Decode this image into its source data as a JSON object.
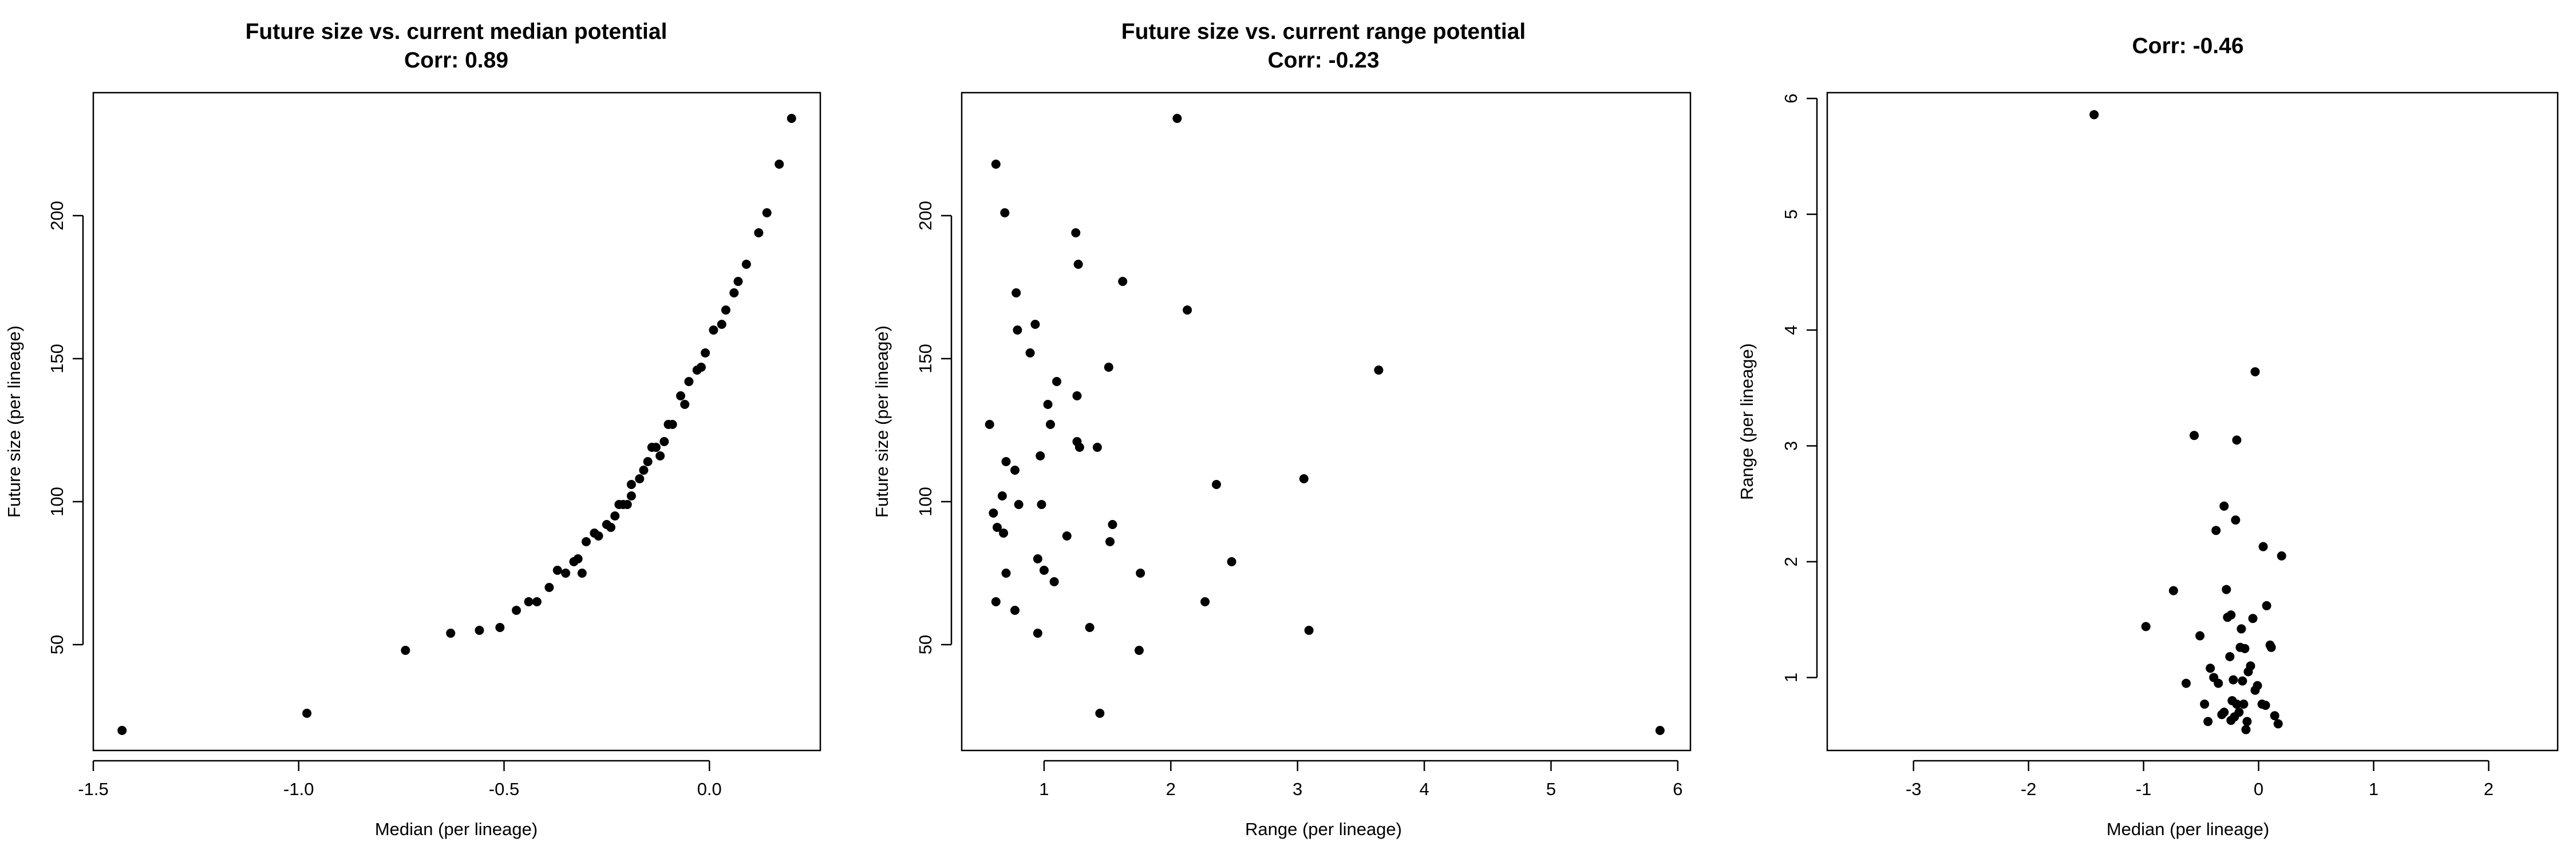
{
  "chart_data": [
    {
      "type": "scatter",
      "title": "Future size vs. current median potential",
      "subtitle": "Corr: 0.89",
      "xlabel": "Median (per lineage)",
      "ylabel": "Future size (per lineage)",
      "xlim": [
        -1.5,
        0.27
      ],
      "ylim": [
        13,
        243
      ],
      "xticks": [
        -1.5,
        -1.0,
        -0.5,
        0.0
      ],
      "xtick_labels": [
        "-1.5",
        "-1.0",
        "-0.5",
        "0.0"
      ],
      "yticks": [
        50,
        100,
        150,
        200
      ],
      "ytick_labels": [
        "50",
        "100",
        "150",
        "200"
      ],
      "point_color": "#000000",
      "points": [
        {
          "x": -1.43,
          "y": 20
        },
        {
          "x": -0.98,
          "y": 26
        },
        {
          "x": -0.74,
          "y": 48
        },
        {
          "x": -0.63,
          "y": 54
        },
        {
          "x": -0.56,
          "y": 55
        },
        {
          "x": -0.51,
          "y": 56
        },
        {
          "x": -0.47,
          "y": 62
        },
        {
          "x": -0.44,
          "y": 65
        },
        {
          "x": -0.42,
          "y": 65
        },
        {
          "x": -0.39,
          "y": 70
        },
        {
          "x": -0.37,
          "y": 76
        },
        {
          "x": -0.35,
          "y": 75
        },
        {
          "x": -0.33,
          "y": 79
        },
        {
          "x": -0.32,
          "y": 80
        },
        {
          "x": -0.31,
          "y": 75
        },
        {
          "x": -0.3,
          "y": 86
        },
        {
          "x": -0.28,
          "y": 89
        },
        {
          "x": -0.27,
          "y": 88
        },
        {
          "x": -0.25,
          "y": 92
        },
        {
          "x": -0.24,
          "y": 91
        },
        {
          "x": -0.23,
          "y": 95
        },
        {
          "x": -0.22,
          "y": 99
        },
        {
          "x": -0.21,
          "y": 99
        },
        {
          "x": -0.2,
          "y": 99
        },
        {
          "x": -0.19,
          "y": 106
        },
        {
          "x": -0.19,
          "y": 102
        },
        {
          "x": -0.17,
          "y": 108
        },
        {
          "x": -0.16,
          "y": 111
        },
        {
          "x": -0.15,
          "y": 114
        },
        {
          "x": -0.14,
          "y": 119
        },
        {
          "x": -0.13,
          "y": 119
        },
        {
          "x": -0.12,
          "y": 116
        },
        {
          "x": -0.11,
          "y": 121
        },
        {
          "x": -0.1,
          "y": 127
        },
        {
          "x": -0.09,
          "y": 127
        },
        {
          "x": -0.07,
          "y": 137
        },
        {
          "x": -0.06,
          "y": 134
        },
        {
          "x": -0.05,
          "y": 142
        },
        {
          "x": -0.03,
          "y": 146
        },
        {
          "x": -0.02,
          "y": 147
        },
        {
          "x": -0.01,
          "y": 152
        },
        {
          "x": 0.01,
          "y": 160
        },
        {
          "x": 0.03,
          "y": 162
        },
        {
          "x": 0.04,
          "y": 167
        },
        {
          "x": 0.06,
          "y": 173
        },
        {
          "x": 0.07,
          "y": 177
        },
        {
          "x": 0.09,
          "y": 183
        },
        {
          "x": 0.12,
          "y": 194
        },
        {
          "x": 0.14,
          "y": 201
        },
        {
          "x": 0.17,
          "y": 218
        },
        {
          "x": 0.2,
          "y": 234
        }
      ]
    },
    {
      "type": "scatter",
      "title": "Future size vs. current range potential",
      "subtitle": "Corr: -0.23",
      "xlabel": "Range (per lineage)",
      "ylabel": "Future size (per lineage)",
      "xlim": [
        0.35,
        6.1
      ],
      "ylim": [
        13,
        243
      ],
      "xticks": [
        1,
        2,
        3,
        4,
        5,
        6
      ],
      "xtick_labels": [
        "1",
        "2",
        "3",
        "4",
        "5",
        "6"
      ],
      "yticks": [
        50,
        100,
        150,
        200
      ],
      "ytick_labels": [
        "50",
        "100",
        "150",
        "200"
      ],
      "point_color": "#000000",
      "points": [
        {
          "x": 0.57,
          "y": 127
        },
        {
          "x": 0.62,
          "y": 218
        },
        {
          "x": 0.6,
          "y": 96
        },
        {
          "x": 0.62,
          "y": 65
        },
        {
          "x": 0.63,
          "y": 91
        },
        {
          "x": 0.67,
          "y": 102
        },
        {
          "x": 0.68,
          "y": 89
        },
        {
          "x": 0.69,
          "y": 201
        },
        {
          "x": 0.7,
          "y": 114
        },
        {
          "x": 0.7,
          "y": 75
        },
        {
          "x": 0.77,
          "y": 111
        },
        {
          "x": 0.78,
          "y": 173
        },
        {
          "x": 0.79,
          "y": 160
        },
        {
          "x": 0.77,
          "y": 62
        },
        {
          "x": 0.8,
          "y": 99
        },
        {
          "x": 0.89,
          "y": 152
        },
        {
          "x": 0.93,
          "y": 162
        },
        {
          "x": 0.95,
          "y": 80
        },
        {
          "x": 0.95,
          "y": 54
        },
        {
          "x": 0.97,
          "y": 116
        },
        {
          "x": 0.98,
          "y": 99
        },
        {
          "x": 1.0,
          "y": 76
        },
        {
          "x": 1.03,
          "y": 134
        },
        {
          "x": 1.05,
          "y": 127
        },
        {
          "x": 1.08,
          "y": 72
        },
        {
          "x": 1.1,
          "y": 142
        },
        {
          "x": 1.18,
          "y": 88
        },
        {
          "x": 1.25,
          "y": 194
        },
        {
          "x": 1.26,
          "y": 137
        },
        {
          "x": 1.27,
          "y": 183
        },
        {
          "x": 1.26,
          "y": 121
        },
        {
          "x": 1.28,
          "y": 119
        },
        {
          "x": 1.36,
          "y": 56
        },
        {
          "x": 1.42,
          "y": 119
        },
        {
          "x": 1.44,
          "y": 26
        },
        {
          "x": 1.51,
          "y": 147
        },
        {
          "x": 1.52,
          "y": 86
        },
        {
          "x": 1.54,
          "y": 92
        },
        {
          "x": 1.62,
          "y": 177
        },
        {
          "x": 1.75,
          "y": 48
        },
        {
          "x": 1.76,
          "y": 75
        },
        {
          "x": 2.05,
          "y": 234
        },
        {
          "x": 2.13,
          "y": 167
        },
        {
          "x": 2.27,
          "y": 65
        },
        {
          "x": 2.36,
          "y": 106
        },
        {
          "x": 2.48,
          "y": 79
        },
        {
          "x": 3.05,
          "y": 108
        },
        {
          "x": 3.09,
          "y": 55
        },
        {
          "x": 3.64,
          "y": 146
        },
        {
          "x": 5.86,
          "y": 20
        }
      ]
    },
    {
      "type": "scatter",
      "title": "",
      "subtitle": "Corr: -0.46",
      "xlabel": "Median (per lineage)",
      "ylabel": "Range (per lineage)",
      "xlim": [
        -3.75,
        2.6
      ],
      "ylim": [
        0.37,
        6.05
      ],
      "xticks": [
        -3,
        -2,
        -1,
        0,
        1,
        2
      ],
      "xtick_labels": [
        "-3",
        "-2",
        "-1",
        "0",
        "1",
        "2"
      ],
      "yticks": [
        1,
        2,
        3,
        4,
        5,
        6
      ],
      "ytick_labels": [
        "1",
        "2",
        "3",
        "4",
        "5",
        "6"
      ],
      "point_color": "#000000",
      "points": [
        {
          "x": -1.43,
          "y": 5.86
        },
        {
          "x": -0.03,
          "y": 3.64
        },
        {
          "x": -0.56,
          "y": 3.09
        },
        {
          "x": -0.19,
          "y": 3.05
        },
        {
          "x": -0.3,
          "y": 2.48
        },
        {
          "x": -0.2,
          "y": 2.36
        },
        {
          "x": -0.37,
          "y": 2.27
        },
        {
          "x": 0.04,
          "y": 2.13
        },
        {
          "x": 0.2,
          "y": 2.05
        },
        {
          "x": -0.74,
          "y": 1.75
        },
        {
          "x": -0.28,
          "y": 1.76
        },
        {
          "x": 0.07,
          "y": 1.62
        },
        {
          "x": -0.24,
          "y": 1.54
        },
        {
          "x": -0.27,
          "y": 1.52
        },
        {
          "x": -0.05,
          "y": 1.51
        },
        {
          "x": -0.98,
          "y": 1.44
        },
        {
          "x": -0.15,
          "y": 1.42
        },
        {
          "x": -0.51,
          "y": 1.36
        },
        {
          "x": 0.1,
          "y": 1.28
        },
        {
          "x": 0.11,
          "y": 1.26
        },
        {
          "x": -0.16,
          "y": 1.26
        },
        {
          "x": -0.12,
          "y": 1.25
        },
        {
          "x": -0.25,
          "y": 1.18
        },
        {
          "x": -0.07,
          "y": 1.1
        },
        {
          "x": -0.42,
          "y": 1.08
        },
        {
          "x": -0.09,
          "y": 1.05
        },
        {
          "x": -0.39,
          "y": 1.0
        },
        {
          "x": -0.22,
          "y": 0.98
        },
        {
          "x": -0.14,
          "y": 0.97
        },
        {
          "x": -0.63,
          "y": 0.95
        },
        {
          "x": -0.35,
          "y": 0.95
        },
        {
          "x": -0.01,
          "y": 0.93
        },
        {
          "x": -0.03,
          "y": 0.89
        },
        {
          "x": -0.23,
          "y": 0.8
        },
        {
          "x": -0.47,
          "y": 0.77
        },
        {
          "x": -0.19,
          "y": 0.77
        },
        {
          "x": 0.03,
          "y": 0.77
        },
        {
          "x": 0.06,
          "y": 0.76
        },
        {
          "x": -0.13,
          "y": 0.77
        },
        {
          "x": -0.3,
          "y": 0.7
        },
        {
          "x": -0.32,
          "y": 0.68
        },
        {
          "x": -0.17,
          "y": 0.7
        },
        {
          "x": -0.21,
          "y": 0.66
        },
        {
          "x": 0.14,
          "y": 0.67
        },
        {
          "x": -0.44,
          "y": 0.62
        },
        {
          "x": -0.24,
          "y": 0.63
        },
        {
          "x": -0.1,
          "y": 0.62
        },
        {
          "x": 0.17,
          "y": 0.6
        },
        {
          "x": -0.11,
          "y": 0.55
        }
      ]
    }
  ]
}
